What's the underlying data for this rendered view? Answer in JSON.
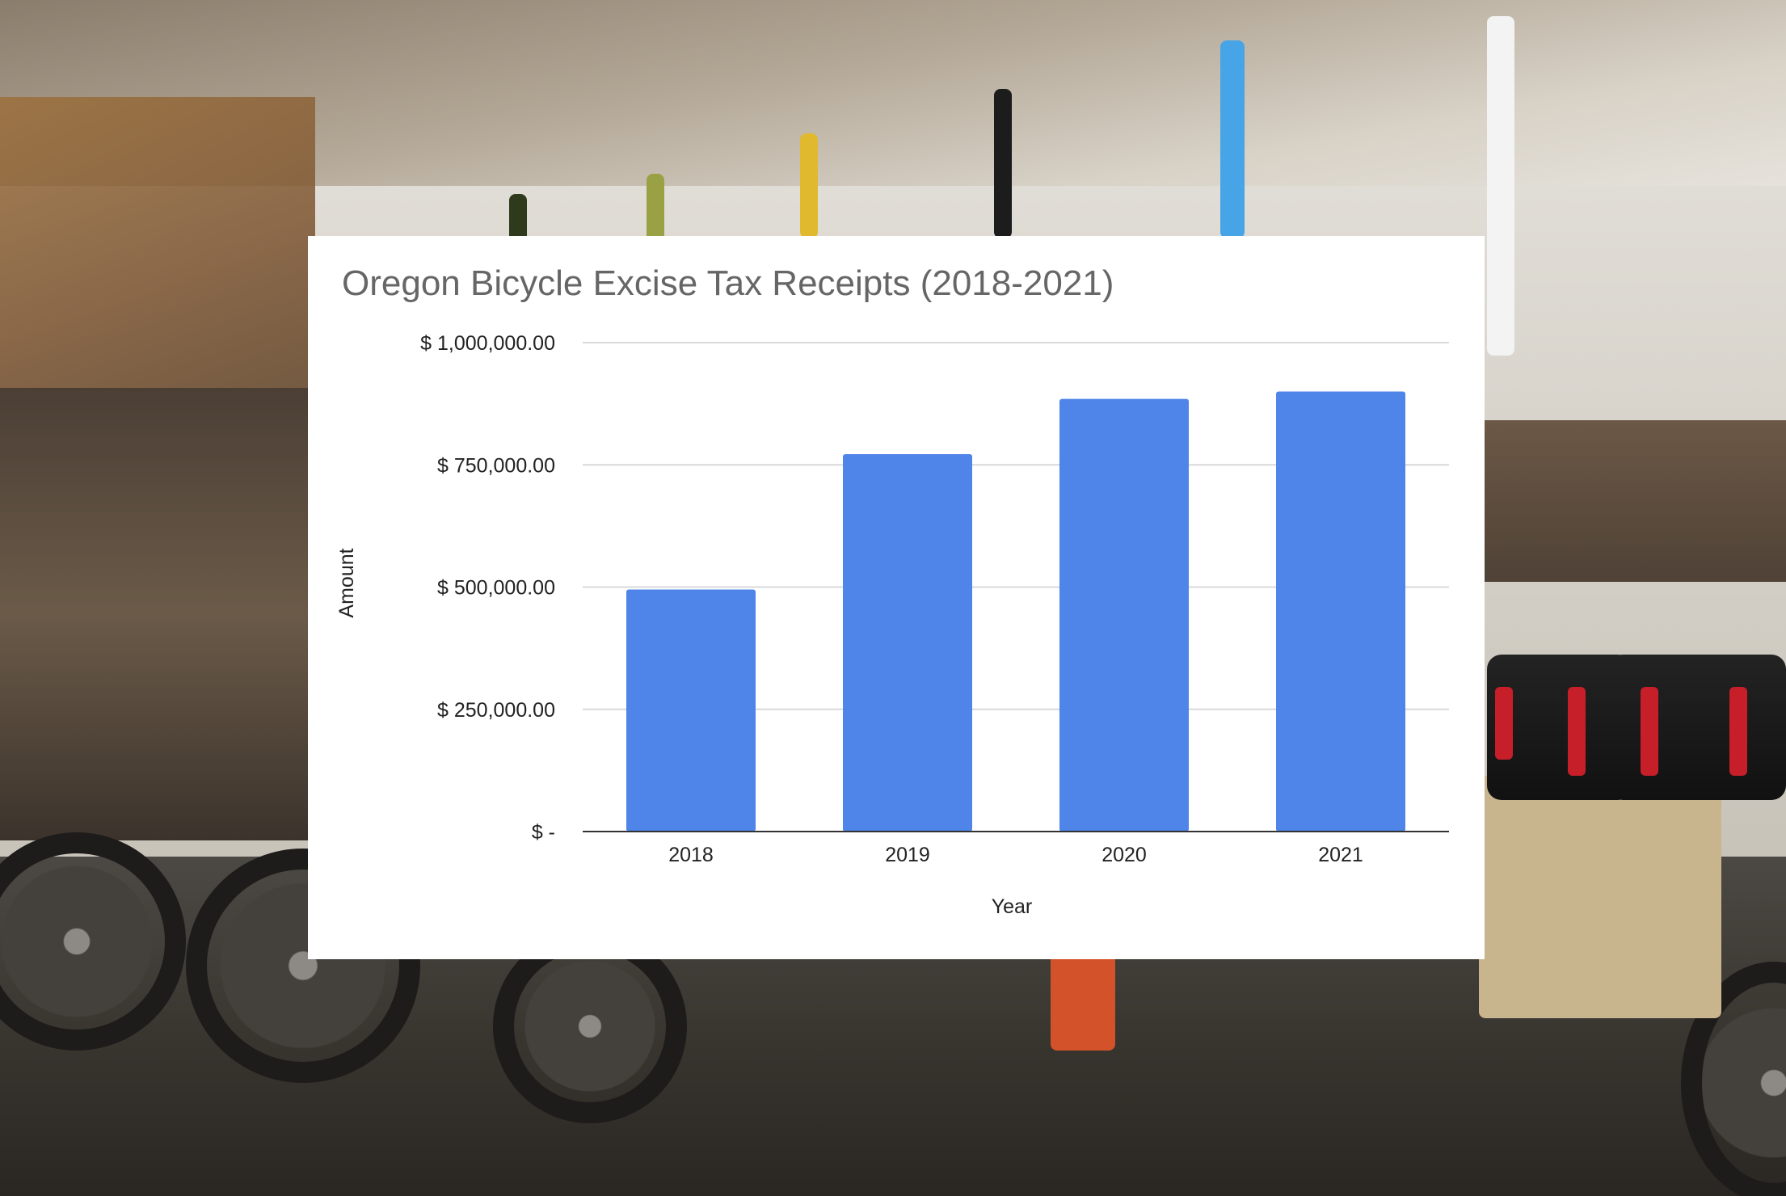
{
  "colors": {
    "bar": "#4f84e9",
    "gridline": "#d9d9d9",
    "axis": "#333333",
    "title": "#666666",
    "card_background": "#ffffff"
  },
  "chart_data": {
    "type": "bar",
    "title": "Oregon Bicycle Excise Tax Receipts (2018-2021)",
    "xlabel": "Year",
    "ylabel": "Amount",
    "categories": [
      "2018",
      "2019",
      "2020",
      "2021"
    ],
    "values": [
      495000,
      772000,
      885000,
      900000
    ],
    "ylim": [
      0,
      1000000
    ],
    "yticks": [
      {
        "value": 0,
        "label": "$ -"
      },
      {
        "value": 250000,
        "label": "$ 250,000.00"
      },
      {
        "value": 500000,
        "label": "$ 500,000.00"
      },
      {
        "value": 750000,
        "label": "$ 750,000.00"
      },
      {
        "value": 1000000,
        "label": "$ 1,000,000.00"
      }
    ],
    "grid": true,
    "legend": "none"
  }
}
